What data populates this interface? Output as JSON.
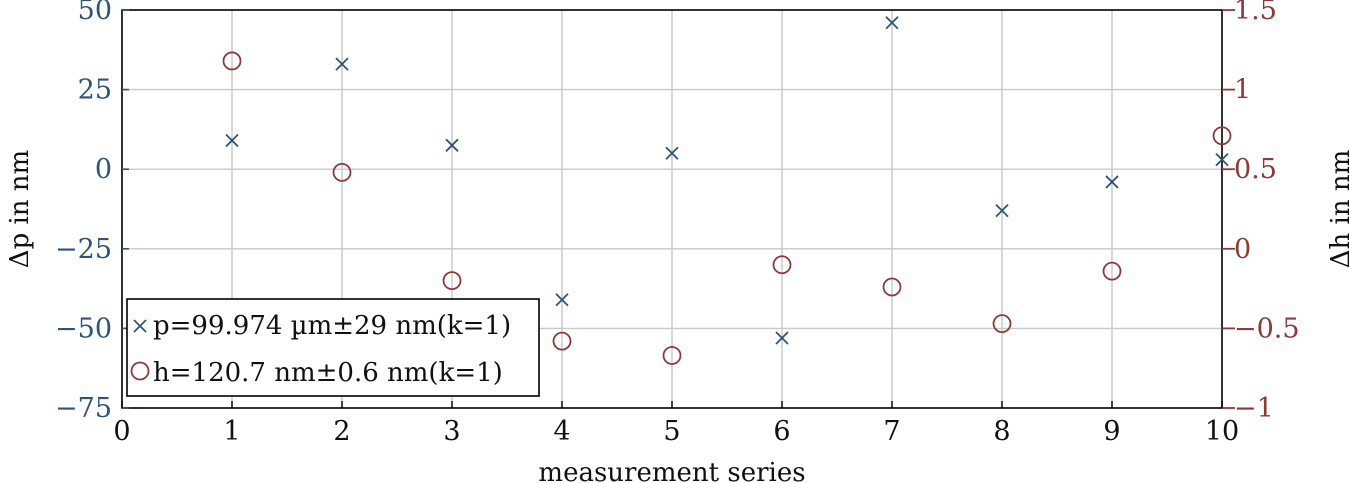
{
  "chart_data": {
    "type": "scatter",
    "xlabel": "measurement series",
    "ylabel_left": "Δp in nm",
    "ylabel_right": "Δh in nm",
    "xlim": [
      0,
      10
    ],
    "ylim_left": [
      -75,
      50
    ],
    "ylim_right": [
      -1,
      1.5
    ],
    "xticks": [
      "0",
      "1",
      "2",
      "3",
      "4",
      "5",
      "6",
      "7",
      "8",
      "9",
      "10"
    ],
    "yticks_left": [
      "50",
      "25",
      "0",
      "−25",
      "−50",
      "−75"
    ],
    "yticks_right": [
      "1.5",
      "1",
      "0.5",
      "0",
      "−0.5",
      "−1"
    ],
    "grid": true,
    "legend_position": "bottom-left",
    "series": [
      {
        "name": "p=99.974 µm±29 nm(k=1)",
        "axis": "left",
        "marker": "x",
        "color": "#2e5478",
        "x": [
          1,
          2,
          3,
          4,
          5,
          6,
          7,
          8,
          9,
          10
        ],
        "y": [
          9,
          33,
          7.5,
          -41,
          5,
          -53,
          46,
          -13,
          -4,
          3
        ]
      },
      {
        "name": "h=120.7 nm±0.6 nm(k=1)",
        "axis": "right",
        "marker": "o",
        "color": "#8b3a3a",
        "x": [
          1,
          2,
          3,
          4,
          5,
          6,
          7,
          8,
          9,
          10
        ],
        "y": [
          1.18,
          0.48,
          -0.2,
          -0.58,
          -0.67,
          -0.1,
          -0.24,
          -0.47,
          -0.14,
          0.71
        ]
      }
    ]
  }
}
